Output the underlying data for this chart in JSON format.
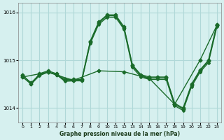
{
  "title": "Graphe pression niveau de la mer (hPa)",
  "xlabel": "Graphe pression niveau de la mer (hPa)",
  "bg_color": "#d6f0ef",
  "grid_color": "#b0d8d8",
  "line_color": "#1a6b2a",
  "ylim": [
    1013.7,
    1016.2
  ],
  "xlim": [
    -0.5,
    23.5
  ],
  "yticks": [
    1014,
    1015,
    1016
  ],
  "xticks": [
    0,
    1,
    2,
    3,
    4,
    5,
    6,
    7,
    8,
    9,
    10,
    11,
    12,
    13,
    14,
    15,
    16,
    17,
    18,
    19,
    20,
    21,
    22,
    23
  ],
  "lines_data": {
    "line1_x": [
      0,
      1,
      2,
      3,
      4,
      5,
      6,
      7,
      8,
      9,
      10,
      11,
      12,
      13,
      14,
      15,
      16,
      17,
      18,
      19,
      20,
      21,
      22,
      23
    ],
    "line1_y": [
      1014.7,
      1014.5,
      1014.72,
      1014.78,
      1014.72,
      1014.6,
      1014.6,
      1014.6,
      1015.4,
      1015.8,
      1015.95,
      1015.95,
      1015.7,
      1014.9,
      1014.7,
      1014.65,
      1014.65,
      1014.65,
      1014.1,
      1014.0,
      1014.5,
      1014.8,
      1015.0,
      1015.75
    ],
    "line2_x": [
      0,
      1,
      2,
      3,
      4,
      5,
      6,
      7,
      8,
      9,
      10,
      11,
      12,
      13,
      14,
      15,
      16,
      17,
      18,
      19,
      20,
      21,
      22,
      23
    ],
    "line2_y": [
      1014.68,
      1014.53,
      1014.7,
      1014.76,
      1014.7,
      1014.58,
      1014.58,
      1014.58,
      1015.38,
      1015.78,
      1015.93,
      1015.93,
      1015.68,
      1014.88,
      1014.68,
      1014.63,
      1014.63,
      1014.63,
      1014.08,
      1013.98,
      1014.48,
      1014.78,
      1014.98,
      1015.73
    ],
    "line3_x": [
      0,
      3,
      6,
      9,
      12,
      15,
      18,
      21,
      23
    ],
    "line3_y": [
      1014.65,
      1014.75,
      1014.58,
      1014.78,
      1014.76,
      1014.62,
      1014.08,
      1015.0,
      1015.73
    ],
    "line4_x": [
      0,
      1,
      2,
      3,
      4,
      5,
      6,
      7,
      8,
      9,
      10,
      11,
      12,
      13,
      14,
      15,
      16,
      17,
      18,
      19,
      20,
      21,
      22,
      23
    ],
    "line4_y": [
      1014.65,
      1014.5,
      1014.68,
      1014.75,
      1014.7,
      1014.56,
      1014.57,
      1014.57,
      1015.35,
      1015.75,
      1015.9,
      1015.9,
      1015.65,
      1014.85,
      1014.65,
      1014.6,
      1014.6,
      1014.6,
      1014.05,
      1013.95,
      1014.45,
      1014.75,
      1014.95,
      1015.7
    ]
  }
}
